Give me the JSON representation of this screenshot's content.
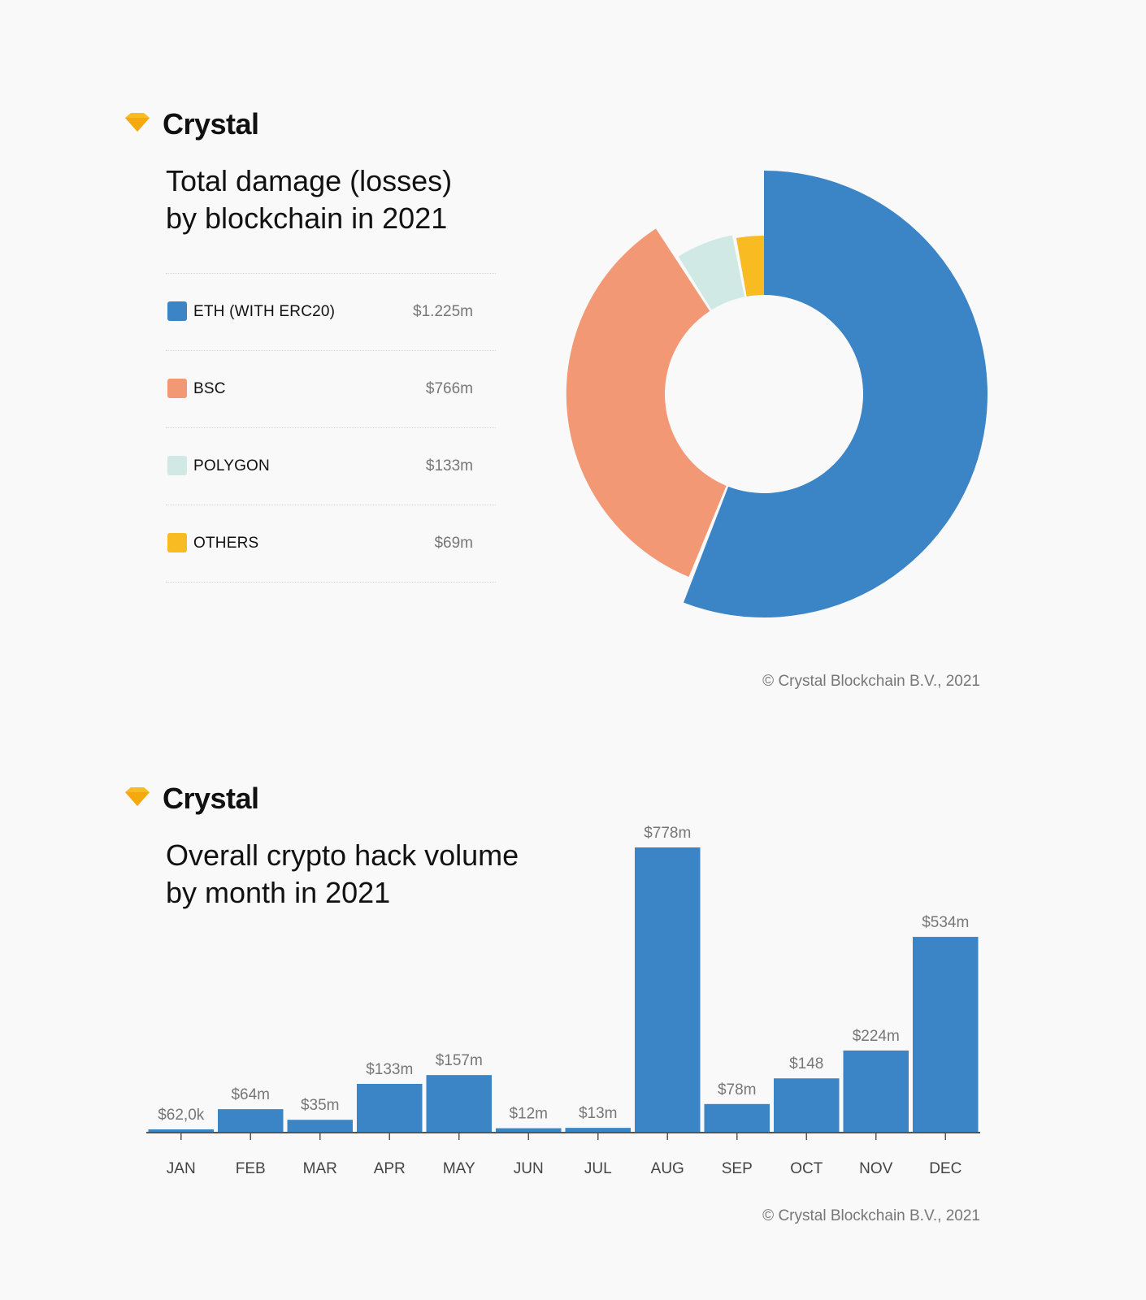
{
  "brand": {
    "name": "Crystal"
  },
  "donut_panel": {
    "title_line1": "Total damage (losses)",
    "title_line2": "by blockchain in 2021",
    "copyright": "© Crystal Blockchain B.V., 2021"
  },
  "bar_panel": {
    "title_line1": "Overall crypto hack volume",
    "title_line2": "by month in 2021",
    "copyright": "© Crystal Blockchain B.V., 2021"
  },
  "chart_data": [
    {
      "type": "pie",
      "title": "Total damage (losses) by blockchain in 2021",
      "unit": "$m",
      "slices": [
        {
          "label": "ETH (WITH ERC20)",
          "value": 1225,
          "display": "$1.225m",
          "color": "#3b84c5"
        },
        {
          "label": "BSC",
          "value": 766,
          "display": "$766m",
          "color": "#f39874"
        },
        {
          "label": "POLYGON",
          "value": 133,
          "display": "$133m",
          "color": "#d1e9e4"
        },
        {
          "label": "OTHERS",
          "value": 69,
          "display": "$69m",
          "color": "#f8bb22"
        }
      ]
    },
    {
      "type": "bar",
      "title": "Overall crypto hack volume by month in 2021",
      "categories": [
        "JAN",
        "FEB",
        "MAR",
        "APR",
        "MAY",
        "JUN",
        "JUL",
        "AUG",
        "SEP",
        "OCT",
        "NOV",
        "DEC"
      ],
      "values": [
        0.062,
        64,
        35,
        133,
        157,
        12,
        13,
        778,
        78,
        148,
        224,
        534
      ],
      "labels": [
        "$62,0k",
        "$64m",
        "$35m",
        "$133m",
        "$157m",
        "$12m",
        "$13m",
        "$778m",
        "$78m",
        "$148",
        "$224m",
        "$534m"
      ],
      "ylim": [
        0,
        778
      ],
      "bar_color": "#3b84c5"
    }
  ]
}
